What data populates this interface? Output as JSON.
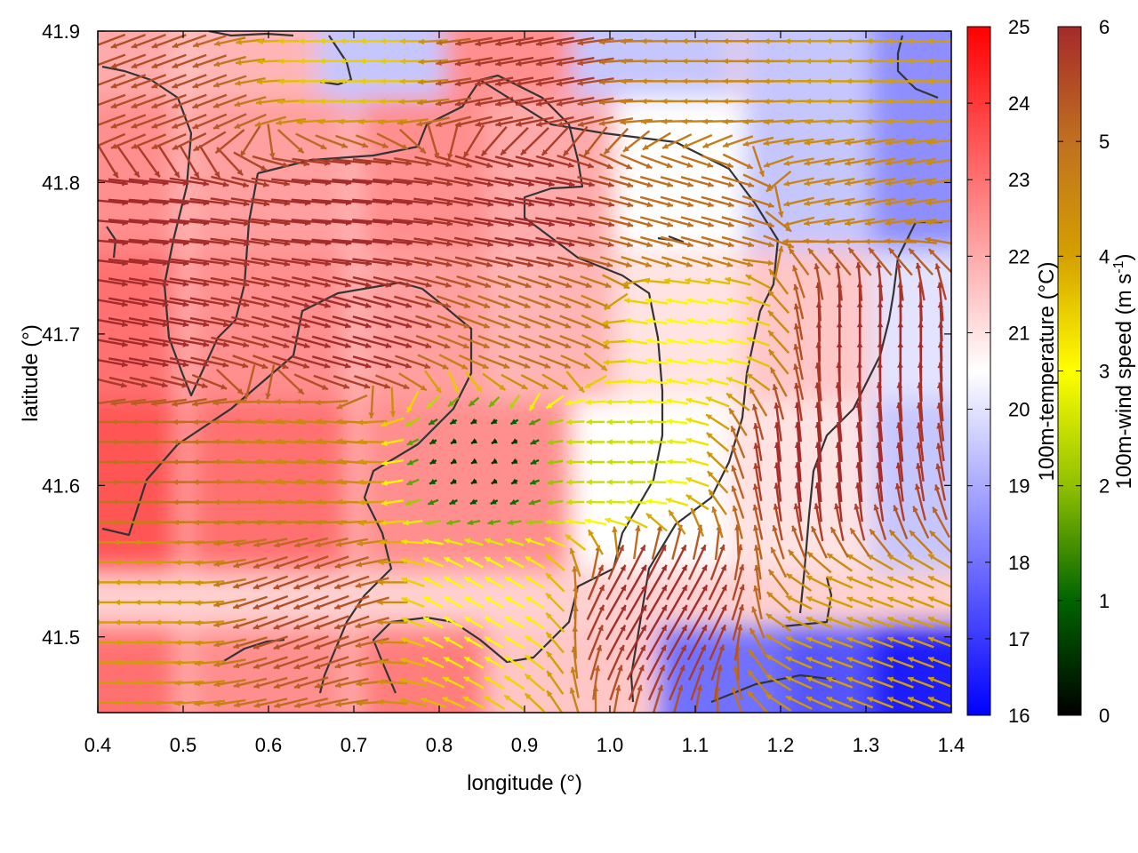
{
  "chart_data": {
    "type": "heatmap",
    "xlabel": "longitude (°)",
    "ylabel": "latitude (°)",
    "xlim": [
      0.4,
      1.4
    ],
    "ylim": [
      41.45,
      41.9
    ],
    "x_ticks": [
      0.4,
      0.5,
      0.6,
      0.7,
      0.8,
      0.9,
      1.0,
      1.1,
      1.2,
      1.3,
      1.4
    ],
    "x_tick_labels": [
      "0.4",
      "0.5",
      "0.6",
      "0.7",
      "0.8",
      "0.9",
      "1.0",
      "1.1",
      "1.2",
      "1.3",
      "1.4"
    ],
    "y_ticks": [
      41.5,
      41.6,
      41.7,
      41.8,
      41.9
    ],
    "y_tick_labels": [
      "41.5",
      "41.6",
      "41.7",
      "41.8",
      "41.9"
    ],
    "temperature_colorbar": {
      "label": "100m-temperature (°C)",
      "range": [
        16,
        25
      ],
      "ticks": [
        16,
        17,
        18,
        19,
        20,
        21,
        22,
        23,
        24,
        25
      ],
      "tick_labels": [
        "16",
        "17",
        "18",
        "19",
        "20",
        "21",
        "22",
        "23",
        "24",
        "25"
      ],
      "colors": [
        "#0000ff",
        "#ffffff",
        "#ff0000"
      ]
    },
    "wind_colorbar": {
      "label_main": "100m-wind speed (m s",
      "label_sup": "-1",
      "label_end": ")",
      "range": [
        0,
        6
      ],
      "ticks": [
        0,
        1,
        2,
        3,
        4,
        5,
        6
      ],
      "tick_labels": [
        "0",
        "1",
        "2",
        "3",
        "4",
        "5",
        "6"
      ],
      "colors": [
        "#000000",
        "#006400",
        "#90c000",
        "#ffff00",
        "#d4a000",
        "#c07020",
        "#a52a2a"
      ]
    },
    "temperature_field": [
      [
        0.4,
        41.9,
        22.0
      ],
      [
        0.6,
        41.9,
        21.8
      ],
      [
        0.75,
        41.9,
        19.5
      ],
      [
        0.9,
        41.9,
        22.5
      ],
      [
        1.05,
        41.9,
        19.5
      ],
      [
        1.25,
        41.9,
        19.5
      ],
      [
        1.4,
        41.9,
        18.5
      ],
      [
        0.4,
        41.8,
        22.5
      ],
      [
        0.6,
        41.8,
        22.2
      ],
      [
        0.8,
        41.8,
        22.5
      ],
      [
        0.95,
        41.8,
        22.0
      ],
      [
        1.1,
        41.8,
        20.5
      ],
      [
        1.25,
        41.8,
        19.5
      ],
      [
        1.4,
        41.8,
        18.5
      ],
      [
        0.4,
        41.7,
        23.0
      ],
      [
        0.6,
        41.7,
        22.5
      ],
      [
        0.8,
        41.7,
        22.2
      ],
      [
        0.95,
        41.7,
        21.8
      ],
      [
        1.1,
        41.7,
        21.0
      ],
      [
        1.25,
        41.7,
        21.5
      ],
      [
        1.4,
        41.7,
        20.0
      ],
      [
        0.4,
        41.6,
        23.5
      ],
      [
        0.6,
        41.6,
        23.0
      ],
      [
        0.8,
        41.6,
        22.5
      ],
      [
        0.9,
        41.6,
        22.5
      ],
      [
        1.05,
        41.6,
        20.5
      ],
      [
        1.25,
        41.6,
        21.0
      ],
      [
        1.4,
        41.6,
        19.5
      ],
      [
        0.4,
        41.45,
        23.0
      ],
      [
        0.6,
        41.45,
        22.5
      ],
      [
        0.8,
        41.45,
        22.8
      ],
      [
        0.95,
        41.45,
        21.5
      ],
      [
        1.15,
        41.45,
        18.0
      ],
      [
        1.3,
        41.45,
        17.5
      ],
      [
        1.4,
        41.45,
        16.5
      ]
    ],
    "wind_field": [
      [
        0.45,
        41.85,
        5.5,
        200
      ],
      [
        0.7,
        41.88,
        3.5,
        180
      ],
      [
        0.9,
        41.87,
        5.8,
        190
      ],
      [
        1.1,
        41.87,
        4.5,
        180
      ],
      [
        1.3,
        41.87,
        4.0,
        180
      ],
      [
        0.45,
        41.78,
        6.0,
        355
      ],
      [
        0.7,
        41.78,
        6.0,
        355
      ],
      [
        0.9,
        41.78,
        6.0,
        350
      ],
      [
        1.1,
        41.78,
        5.0,
        345
      ],
      [
        1.3,
        41.8,
        4.5,
        190
      ],
      [
        0.45,
        41.7,
        6.0,
        350
      ],
      [
        0.7,
        41.7,
        6.0,
        345
      ],
      [
        0.9,
        41.7,
        5.0,
        340
      ],
      [
        1.1,
        41.7,
        3.0,
        170
      ],
      [
        1.3,
        41.7,
        6.0,
        90
      ],
      [
        0.45,
        41.62,
        5.0,
        180
      ],
      [
        0.65,
        41.62,
        4.5,
        175
      ],
      [
        0.85,
        41.62,
        0.5,
        210
      ],
      [
        1.0,
        41.62,
        2.5,
        180
      ],
      [
        1.25,
        41.62,
        6.0,
        95
      ],
      [
        0.45,
        41.52,
        4.0,
        180
      ],
      [
        0.65,
        41.52,
        5.5,
        200
      ],
      [
        0.85,
        41.52,
        3.0,
        150
      ],
      [
        1.05,
        41.52,
        6.0,
        60
      ],
      [
        1.3,
        41.5,
        4.0,
        160
      ]
    ]
  }
}
